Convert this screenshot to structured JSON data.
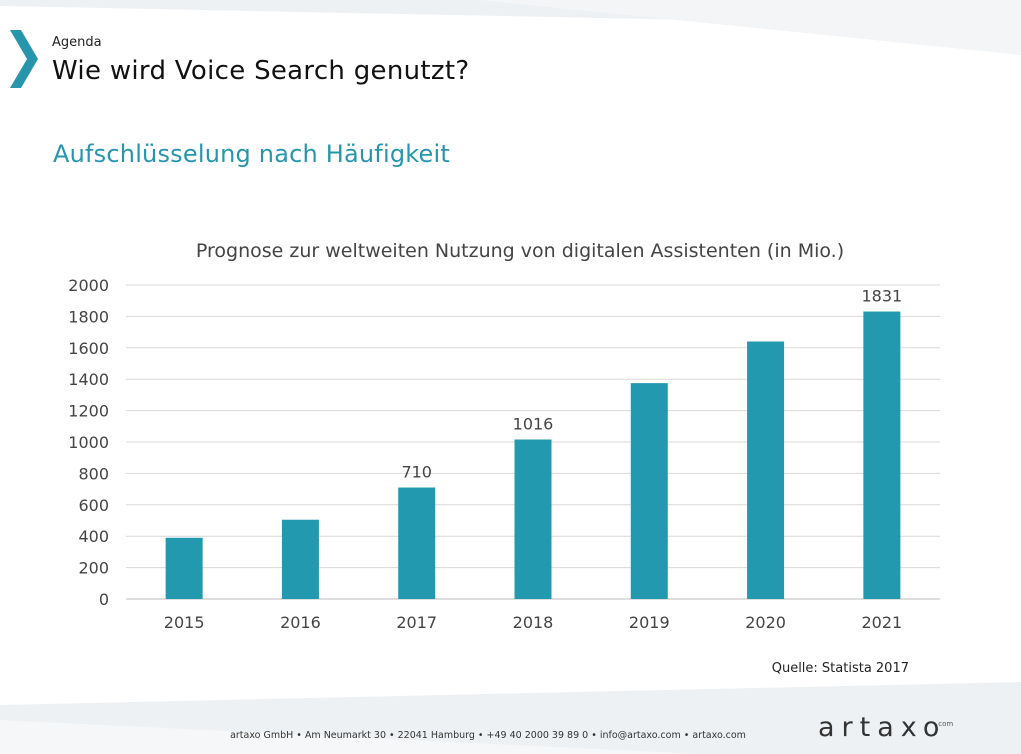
{
  "header": {
    "section_label": "Agenda",
    "title": "Wie wird Voice Search genutzt?"
  },
  "subtitle": "Aufschlüsselung nach Häufigkeit",
  "chart_data": {
    "type": "bar",
    "title": "Prognose zur weltweiten Nutzung von digitalen Assistenten (in Mio.)",
    "categories": [
      "2015",
      "2016",
      "2017",
      "2018",
      "2019",
      "2020",
      "2021"
    ],
    "values": [
      390,
      505,
      710,
      1016,
      1375,
      1640,
      1831
    ],
    "data_labels": [
      "",
      "",
      "710",
      "1016",
      "",
      "",
      "1831"
    ],
    "yticks": [
      0,
      200,
      400,
      600,
      800,
      1000,
      1200,
      1400,
      1600,
      1800,
      2000
    ],
    "ylim": [
      0,
      2000
    ],
    "xlabel": "",
    "ylabel": "",
    "grid": true,
    "bar_color": "#2399b0"
  },
  "source": "Quelle: Statista 2017",
  "footer": "artaxo GmbH  •  Am Neumarkt 30  •  22041 Hamburg  •  +49 40 2000 39 89 0  •  info@artaxo.com  •  artaxo.com",
  "logo": {
    "text": "artaxo",
    "suffix": ".com"
  },
  "colors": {
    "accent": "#2796ad",
    "bar": "#2399b0"
  }
}
